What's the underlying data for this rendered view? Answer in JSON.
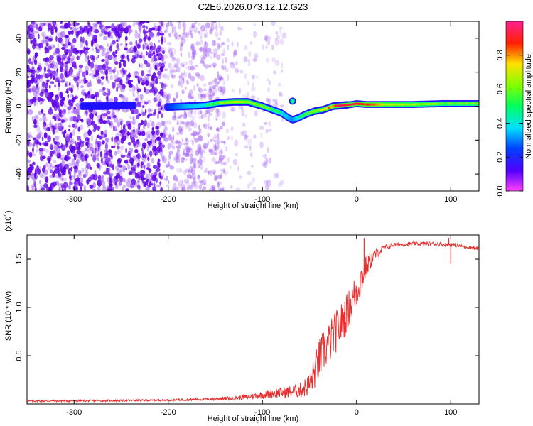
{
  "title": "C2E6.2026.073.12.12.G23",
  "colors": {
    "spectrogram_blue": "#5a00e6",
    "ridge_hot": "#e60000",
    "snr_line": "#e83030",
    "axis": "#000000"
  },
  "chart_data": [
    {
      "id": "spectrogram",
      "type": "heatmap",
      "xlabel": "Height of straight line (km)",
      "ylabel": "Frequency (Hz)",
      "xlim": [
        -350,
        130
      ],
      "ylim": [
        -50,
        50
      ],
      "xticks": [
        -300,
        -200,
        -100,
        0,
        100
      ],
      "xtick_labels": [
        "-300",
        "-200",
        "-100",
        "0",
        "100"
      ],
      "yticks": [
        -40,
        -20,
        0,
        20,
        40
      ],
      "ytick_labels": [
        "-40",
        "-20",
        "0",
        "20",
        "40"
      ],
      "colorbar": {
        "label": "Normalized spectral amplitude",
        "range": [
          0,
          1
        ],
        "ticks": [
          0.0,
          0.2,
          0.4,
          0.6,
          0.8
        ],
        "tick_labels": [
          "0.0",
          "0.2",
          "0.4",
          "0.6",
          "0.8"
        ],
        "colormap": "rainbow (magenta-blue-cyan-green-yellow-red-magenta)"
      },
      "noise_regions": [
        {
          "x_range": [
            -350,
            -205
          ],
          "density": "high",
          "max_amplitude": 0.35
        },
        {
          "x_range": [
            -205,
            -140
          ],
          "density": "medium",
          "max_amplitude": 0.15
        },
        {
          "x_range": [
            -140,
            -75
          ],
          "density": "low",
          "max_amplitude": 0.08
        }
      ],
      "ridge": {
        "x": [
          -290,
          -270,
          -250,
          -240,
          -200,
          -180,
          -160,
          -145,
          -130,
          -115,
          -100,
          -90,
          -80,
          -72,
          -68,
          -62,
          -55,
          -45,
          -35,
          -25,
          -15,
          -5,
          0,
          10,
          30,
          60,
          90,
          130
        ],
        "freq": [
          0,
          0,
          0.5,
          0.5,
          -0.5,
          0,
          0.5,
          2,
          2.5,
          2.5,
          0,
          -2,
          -4,
          -7,
          -8,
          -7,
          -5,
          -3,
          -2,
          0,
          0.5,
          1,
          1.5,
          1,
          1,
          1,
          1.5,
          1.5
        ],
        "amplitude": [
          0.22,
          0.22,
          0.25,
          0.2,
          0.3,
          0.45,
          0.5,
          0.6,
          0.7,
          0.65,
          0.6,
          0.55,
          0.5,
          0.45,
          0.4,
          0.5,
          0.55,
          0.65,
          0.7,
          0.85,
          0.95,
          0.9,
          0.92,
          0.9,
          0.7,
          0.65,
          0.6,
          0.6
        ]
      },
      "side_blob": {
        "x": -68,
        "freq": 3,
        "amplitude": 0.45
      }
    },
    {
      "id": "snr",
      "type": "line",
      "xlabel": "Height of straight line (km)",
      "ylabel": "SNR (10 * v/v)",
      "multiplier_label": "(x10",
      "multiplier_exponent": "4",
      "xlim": [
        -350,
        130
      ],
      "ylim": [
        0,
        1.75
      ],
      "xticks": [
        -300,
        -200,
        -100,
        0,
        100
      ],
      "xtick_labels": [
        "-300",
        "-200",
        "-100",
        "0",
        "100"
      ],
      "yticks": [
        0.5,
        1.0,
        1.5
      ],
      "ytick_labels": [
        "0.5",
        "1.0",
        "1.5"
      ],
      "series": [
        {
          "name": "SNR",
          "x": [
            -350,
            -250,
            -200,
            -160,
            -130,
            -110,
            -90,
            -75,
            -60,
            -50,
            -45,
            -40,
            -35,
            -30,
            -25,
            -20,
            -15,
            -10,
            -5,
            0,
            5,
            10,
            20,
            30,
            40,
            60,
            80,
            100,
            130
          ],
          "mean": [
            0.03,
            0.035,
            0.04,
            0.05,
            0.06,
            0.08,
            0.11,
            0.12,
            0.14,
            0.2,
            0.32,
            0.45,
            0.55,
            0.62,
            0.7,
            0.78,
            0.85,
            0.95,
            1.05,
            1.18,
            1.3,
            1.42,
            1.55,
            1.62,
            1.65,
            1.66,
            1.66,
            1.65,
            1.61
          ],
          "noise": [
            0.01,
            0.01,
            0.01,
            0.015,
            0.02,
            0.03,
            0.05,
            0.06,
            0.08,
            0.12,
            0.18,
            0.22,
            0.22,
            0.22,
            0.22,
            0.22,
            0.22,
            0.2,
            0.2,
            0.2,
            0.18,
            0.12,
            0.06,
            0.03,
            0.02,
            0.02,
            0.02,
            0.02,
            0.02
          ],
          "spikes": [
            {
              "x": 8,
              "y": 1.72
            },
            {
              "x": 98,
              "y": 1.72
            },
            {
              "x": 100,
              "y": 1.45
            }
          ]
        }
      ]
    }
  ]
}
